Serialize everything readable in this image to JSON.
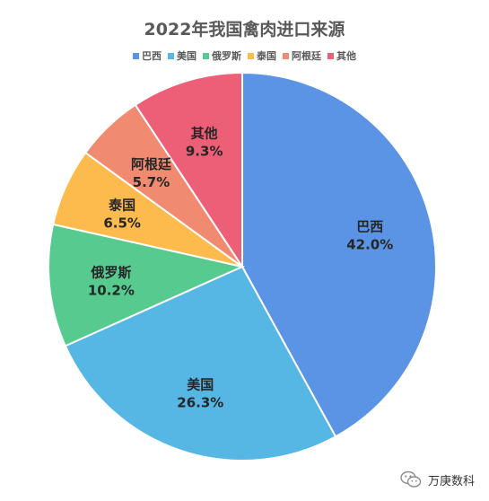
{
  "chart_data": {
    "type": "pie",
    "title": "2022年我国禽肉进口来源",
    "legend_position": "top",
    "categories": [
      "巴西",
      "美国",
      "俄罗斯",
      "泰国",
      "阿根廷",
      "其他"
    ],
    "values": [
      42.0,
      26.3,
      10.2,
      6.5,
      5.7,
      9.3
    ],
    "value_labels": [
      "42.0%",
      "26.3%",
      "10.2%",
      "6.5%",
      "5.7%",
      "9.3%"
    ],
    "colors": [
      "#5B94E5",
      "#56B6E4",
      "#57CB8F",
      "#FDBA4D",
      "#F08A70",
      "#EC5F77"
    ],
    "start_angle_deg": 0,
    "direction": "clockwise"
  },
  "watermark": {
    "text": "万庚数科",
    "icon": "wechat-icon"
  }
}
